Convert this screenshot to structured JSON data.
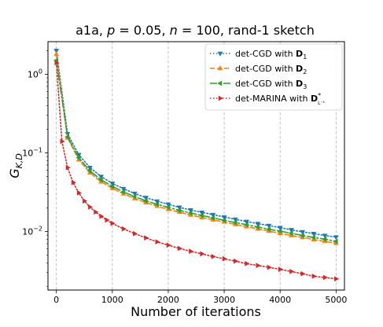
{
  "chart_data": {
    "type": "line",
    "title": "a1a, p = 0.05, n = 100, rand-1 sketch",
    "title_parts": {
      "dataset": "a1a, ",
      "p_var": "p",
      "p_val": " = 0.05, ",
      "n_var": "n",
      "n_val": " = 100, rand-1 sketch"
    },
    "xlabel": "Number of iterations",
    "ylabel": "G",
    "ylabel_sub": "K,D",
    "x_scale": "linear",
    "y_scale": "log",
    "xlim": [
      -150,
      5150
    ],
    "ylim": [
      0.0018,
      2.6
    ],
    "grid": "vertical dashed",
    "legend_position": "top-right",
    "x_ticks": [
      0,
      1000,
      2000,
      3000,
      4000,
      5000
    ],
    "x_tick_labels": [
      "0",
      "1000",
      "2000",
      "3000",
      "4000",
      "5000"
    ],
    "y_ticks": [
      1,
      0.1,
      0.01
    ],
    "y_tick_labels": [
      {
        "base": "10",
        "exp": "0"
      },
      {
        "base": "10",
        "exp": "−1"
      },
      {
        "base": "10",
        "exp": "−2"
      }
    ],
    "series": [
      {
        "name": "det-CGD with D1",
        "legend": {
          "prefix": "det-CGD with ",
          "sym": "D",
          "sub": "1"
        },
        "color": "#1f77b4",
        "dash": "1.5,2.5",
        "marker": "tri-down",
        "x": [
          0,
          200,
          400,
          600,
          800,
          1000,
          1200,
          1400,
          1600,
          1800,
          2000,
          2200,
          2400,
          2600,
          2800,
          3000,
          3200,
          3400,
          3600,
          3800,
          4000,
          4200,
          4400,
          4600,
          4800,
          5000
        ],
        "y": [
          2.0,
          0.175,
          0.095,
          0.065,
          0.05,
          0.041,
          0.035,
          0.0305,
          0.027,
          0.0243,
          0.0222,
          0.0203,
          0.0188,
          0.0175,
          0.0164,
          0.0153,
          0.0143,
          0.0134,
          0.0126,
          0.0119,
          0.0112,
          0.0105,
          0.0099,
          0.0094,
          0.0089,
          0.0085
        ]
      },
      {
        "name": "det-CGD with D2",
        "legend": {
          "prefix": "det-CGD with ",
          "sym": "D",
          "sub": "2"
        },
        "color": "#ff7f0e",
        "dash": "6,3",
        "marker": "tri-up",
        "x": [
          0,
          200,
          400,
          600,
          800,
          1000,
          1200,
          1400,
          1600,
          1800,
          2000,
          2200,
          2400,
          2600,
          2800,
          3000,
          3200,
          3400,
          3600,
          3800,
          4000,
          4200,
          4400,
          4600,
          4800,
          5000
        ],
        "y": [
          1.8,
          0.155,
          0.082,
          0.056,
          0.043,
          0.0355,
          0.0302,
          0.0263,
          0.0233,
          0.021,
          0.0192,
          0.0176,
          0.0162,
          0.0151,
          0.0141,
          0.0132,
          0.0123,
          0.0115,
          0.0108,
          0.0101,
          0.0095,
          0.0089,
          0.0084,
          0.0079,
          0.0075,
          0.0071
        ]
      },
      {
        "name": "det-CGD with D3",
        "legend": {
          "prefix": "det-CGD with ",
          "sym": "D",
          "sub": "3"
        },
        "color": "#2ca02c",
        "dash": "9,3,2,3",
        "marker": "tri-left",
        "x": [
          0,
          200,
          400,
          600,
          800,
          1000,
          1200,
          1400,
          1600,
          1800,
          2000,
          2200,
          2400,
          2600,
          2800,
          3000,
          3200,
          3400,
          3600,
          3800,
          4000,
          4200,
          4400,
          4600,
          4800,
          5000
        ],
        "y": [
          1.5,
          0.16,
          0.087,
          0.059,
          0.0455,
          0.0375,
          0.0319,
          0.0278,
          0.0246,
          0.0222,
          0.0203,
          0.0186,
          0.0172,
          0.016,
          0.0149,
          0.0139,
          0.013,
          0.0122,
          0.0114,
          0.0107,
          0.0101,
          0.0095,
          0.0089,
          0.0084,
          0.008,
          0.0075
        ]
      },
      {
        "name": "det-MARINA with D*L-1",
        "legend": {
          "prefix": "det-MARINA with ",
          "sym": "D",
          "sub": "L⁻¹",
          "sup": "*"
        },
        "color": "#d62728",
        "dash": "1.5,2.5",
        "marker": "tri-right",
        "x": [
          0,
          100,
          200,
          300,
          400,
          500,
          600,
          700,
          800,
          900,
          1000,
          1200,
          1400,
          1600,
          1800,
          2000,
          2200,
          2400,
          2600,
          2800,
          3000,
          3200,
          3400,
          3600,
          3800,
          4000,
          4200,
          4400,
          4600,
          4800,
          5000
        ],
        "y": [
          1.4,
          0.14,
          0.065,
          0.042,
          0.031,
          0.0245,
          0.0205,
          0.0177,
          0.0156,
          0.014,
          0.0127,
          0.0108,
          0.0094,
          0.0083,
          0.0074,
          0.0067,
          0.0061,
          0.0056,
          0.0052,
          0.0048,
          0.0045,
          0.0042,
          0.0039,
          0.0037,
          0.0035,
          0.0033,
          0.0031,
          0.0029,
          0.0027,
          0.0026,
          0.0025
        ]
      }
    ]
  }
}
